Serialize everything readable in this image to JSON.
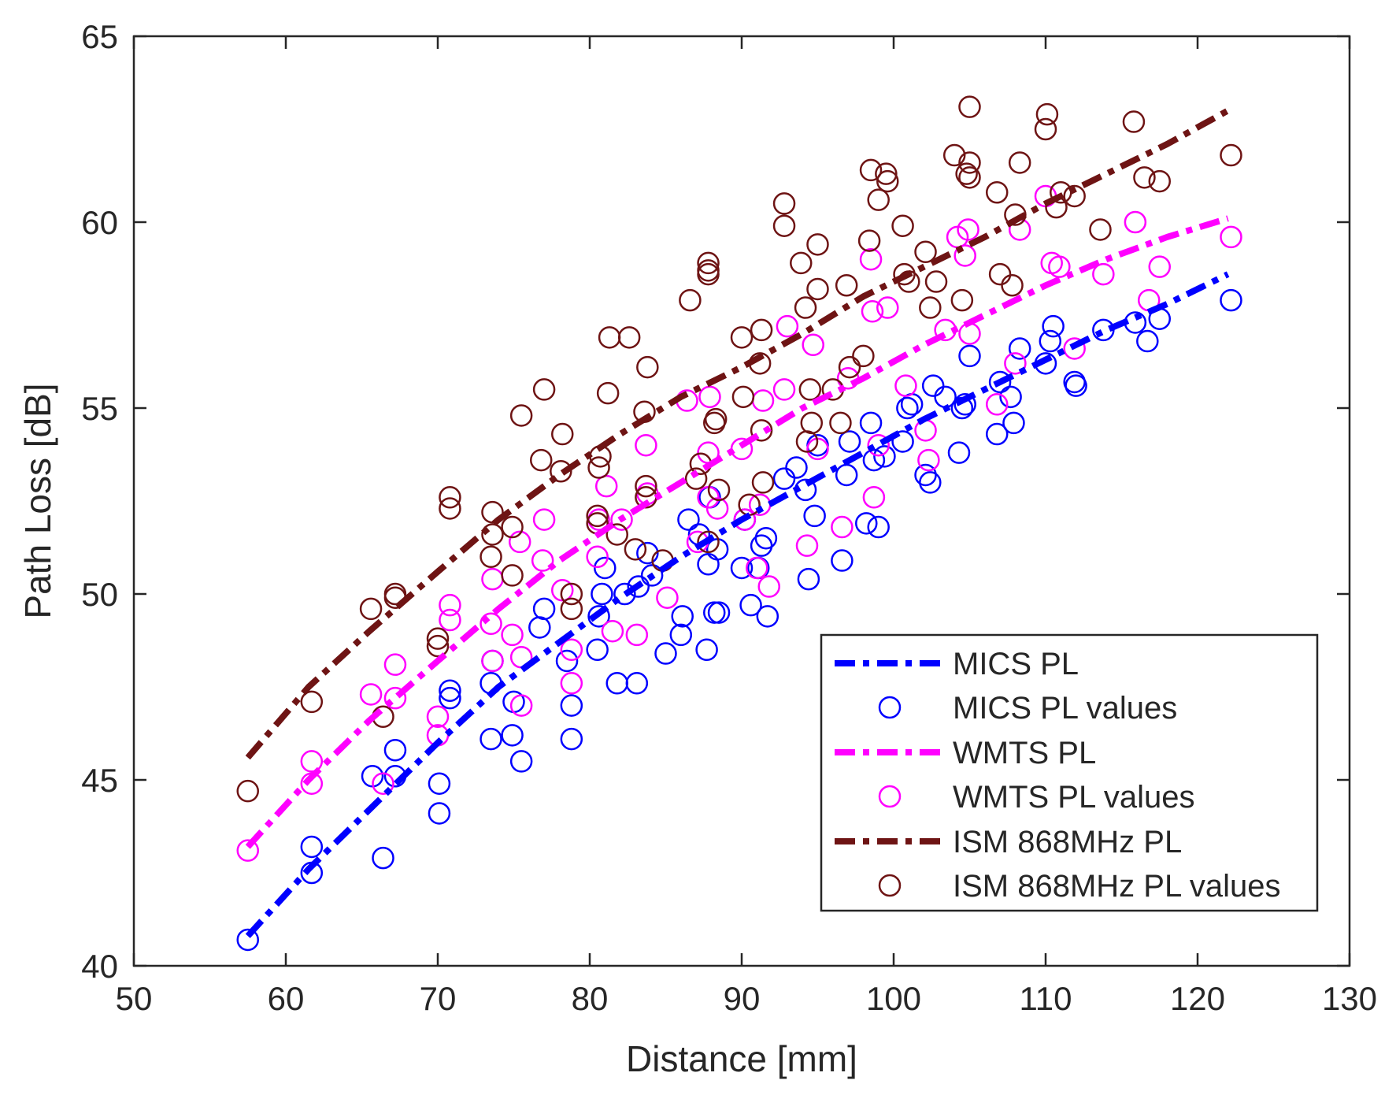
{
  "chart_data": {
    "type": "scatter",
    "title": "",
    "xlabel": "Distance [mm]",
    "ylabel": "Path Loss [dB]",
    "xlim": [
      50,
      130
    ],
    "ylim": [
      40,
      65
    ],
    "xticks": [
      50,
      60,
      70,
      80,
      90,
      100,
      110,
      120,
      130
    ],
    "yticks": [
      40,
      45,
      50,
      55,
      60,
      65
    ],
    "grid": false,
    "legend_position": "bottom-right",
    "fit_x": [
      57.5,
      61.5,
      65.5,
      70,
      74,
      78,
      82,
      86,
      90,
      94,
      98,
      102,
      106,
      110,
      114,
      118,
      122
    ],
    "series": [
      {
        "name": "MICS PL",
        "kind": "line",
        "color": "#0000ff",
        "values": [
          40.8,
          42.6,
          44.2,
          46.0,
          47.5,
          48.7,
          49.9,
          51.0,
          52.0,
          52.9,
          53.8,
          54.7,
          55.5,
          56.3,
          57.1,
          57.8,
          58.6
        ]
      },
      {
        "name": "MICS PL values",
        "kind": "points",
        "color": "#0000ff",
        "x": [
          57.5,
          61.7,
          61.7,
          65.7,
          66.4,
          67.2,
          67.2,
          70.1,
          70.1,
          70.8,
          70.8,
          73.5,
          73.5,
          73.6,
          74.9,
          75.0,
          75.5,
          76.7,
          77.0,
          78.5,
          78.8,
          78.8,
          80.5,
          80.6,
          80.8,
          81.0,
          81.8,
          82.3,
          83.1,
          83.2,
          83.8,
          84.1,
          85.0,
          86.0,
          86.1,
          86.5,
          87.2,
          87.7,
          87.8,
          87.9,
          88.2,
          88.4,
          88.5,
          90.0,
          90.2,
          90.6,
          91.1,
          91.3,
          91.6,
          91.7,
          92.8,
          93.6,
          94.2,
          94.4,
          94.8,
          95.0,
          96.6,
          96.9,
          97.1,
          98.2,
          98.5,
          98.7,
          99.0,
          99.4,
          100.6,
          100.9,
          101.2,
          102.1,
          102.4,
          102.6,
          103.4,
          104.3,
          104.5,
          104.7,
          105.0,
          106.8,
          107.0,
          107.7,
          107.9,
          108.3,
          110.0,
          110.3,
          110.5,
          111.9,
          112.0,
          113.8,
          115.9,
          116.7,
          117.5,
          122.2
        ],
        "y": [
          40.7,
          42.5,
          43.2,
          45.1,
          42.9,
          45.1,
          45.8,
          44.1,
          44.9,
          47.2,
          47.4,
          46.1,
          47.6,
          48.2,
          46.2,
          47.1,
          45.5,
          49.1,
          49.6,
          48.2,
          46.1,
          47.0,
          48.5,
          49.4,
          50.0,
          50.7,
          47.6,
          50.0,
          47.6,
          50.2,
          51.1,
          50.5,
          48.4,
          48.9,
          49.4,
          52.0,
          51.6,
          48.5,
          50.8,
          52.6,
          49.5,
          51.2,
          49.5,
          50.7,
          52.0,
          49.7,
          50.7,
          51.3,
          51.5,
          49.4,
          53.1,
          53.4,
          52.8,
          50.4,
          52.1,
          54.0,
          50.9,
          53.2,
          54.1,
          51.9,
          54.6,
          53.6,
          51.8,
          53.7,
          54.1,
          55.0,
          55.1,
          53.2,
          53.0,
          55.6,
          55.3,
          53.8,
          55.0,
          55.1,
          56.4,
          54.3,
          55.7,
          55.3,
          54.6,
          56.6,
          56.2,
          56.8,
          57.2,
          55.7,
          55.6,
          57.1,
          57.3,
          56.8,
          57.4,
          57.9
        ]
      },
      {
        "name": "WMTS PL",
        "kind": "line",
        "color": "#ff00ff",
        "values": [
          43.2,
          45.0,
          46.6,
          48.2,
          49.6,
          50.9,
          52.0,
          53.0,
          54.0,
          55.0,
          55.8,
          56.7,
          57.5,
          58.3,
          59.0,
          59.6,
          60.1
        ]
      },
      {
        "name": "WMTS PL values",
        "kind": "points",
        "color": "#ff00ff",
        "x": [
          57.5,
          61.7,
          61.7,
          65.6,
          66.4,
          67.2,
          67.2,
          70.0,
          70.0,
          70.8,
          70.8,
          73.5,
          73.6,
          73.6,
          74.9,
          75.4,
          75.5,
          75.5,
          76.9,
          77.0,
          78.2,
          78.8,
          78.8,
          80.5,
          80.6,
          81.1,
          81.5,
          82.1,
          83.1,
          83.7,
          83.8,
          85.1,
          86.4,
          87.1,
          87.8,
          87.8,
          87.9,
          88.4,
          90.0,
          90.2,
          91.0,
          91.2,
          91.4,
          91.8,
          92.8,
          93.0,
          94.3,
          94.7,
          95.0,
          96.6,
          97.0,
          98.5,
          98.6,
          98.7,
          99.0,
          99.6,
          100.8,
          102.1,
          102.3,
          103.4,
          104.2,
          104.7,
          104.9,
          105.0,
          106.8,
          108.0,
          108.3,
          110.0,
          110.4,
          110.9,
          111.9,
          113.8,
          115.9,
          116.8,
          117.5,
          122.2
        ],
        "y": [
          43.1,
          44.9,
          45.5,
          47.3,
          44.9,
          47.2,
          48.1,
          46.2,
          46.7,
          49.3,
          49.7,
          49.2,
          48.2,
          50.4,
          48.9,
          51.4,
          47.0,
          48.3,
          50.9,
          52.0,
          50.1,
          47.6,
          48.5,
          51.0,
          52.0,
          52.9,
          49.0,
          52.0,
          48.9,
          54.0,
          52.7,
          49.9,
          55.2,
          51.4,
          53.8,
          52.6,
          55.3,
          52.3,
          53.9,
          52.0,
          50.7,
          52.4,
          55.2,
          50.2,
          55.5,
          57.2,
          51.3,
          56.7,
          53.9,
          51.8,
          55.8,
          59.0,
          57.6,
          52.6,
          54.0,
          57.7,
          55.6,
          54.4,
          53.6,
          57.1,
          59.6,
          59.1,
          59.8,
          57.0,
          55.1,
          56.2,
          59.8,
          60.7,
          58.9,
          58.8,
          56.6,
          58.6,
          60.0,
          57.9,
          58.8,
          59.6
        ]
      },
      {
        "name": "ISM 868MHz PL",
        "kind": "line",
        "color": "#6e1414",
        "values": [
          45.6,
          47.5,
          49.0,
          50.6,
          52.0,
          53.2,
          54.3,
          55.3,
          56.1,
          57.0,
          58.0,
          58.8,
          59.6,
          60.5,
          61.3,
          62.1,
          63.0
        ]
      },
      {
        "name": "ISM 868MHz PL values",
        "kind": "points",
        "color": "#6e1414",
        "x": [
          57.5,
          61.7,
          65.6,
          66.4,
          67.2,
          67.2,
          70.0,
          70.0,
          70.8,
          70.8,
          73.5,
          73.6,
          73.6,
          74.9,
          74.9,
          75.5,
          76.8,
          77.0,
          78.1,
          78.2,
          78.8,
          78.8,
          80.5,
          80.5,
          80.6,
          80.7,
          81.2,
          81.3,
          81.8,
          82.6,
          83.0,
          83.6,
          83.7,
          83.7,
          83.8,
          84.8,
          86.6,
          87.0,
          87.3,
          87.8,
          87.8,
          87.8,
          87.8,
          88.2,
          88.3,
          88.5,
          90.0,
          90.1,
          90.5,
          91.2,
          91.3,
          91.3,
          91.4,
          92.8,
          92.8,
          93.9,
          94.2,
          94.3,
          94.5,
          94.6,
          95.0,
          95.0,
          96.0,
          96.5,
          96.9,
          97.1,
          98.0,
          98.4,
          98.5,
          99.0,
          99.5,
          99.6,
          100.6,
          100.7,
          101.0,
          102.1,
          102.4,
          102.8,
          104.0,
          104.5,
          104.8,
          105.0,
          105.0,
          105.0,
          106.8,
          107.0,
          107.8,
          108.0,
          108.3,
          110.0,
          110.1,
          110.7,
          111.0,
          111.9,
          113.6,
          115.8,
          116.5,
          117.5,
          122.2
        ],
        "y": [
          44.7,
          47.1,
          49.6,
          46.7,
          49.9,
          50.0,
          48.6,
          48.8,
          52.3,
          52.6,
          51.0,
          51.6,
          52.2,
          51.8,
          50.5,
          54.8,
          53.6,
          55.5,
          53.3,
          54.3,
          49.6,
          50.0,
          51.9,
          52.1,
          53.4,
          53.7,
          55.4,
          56.9,
          51.6,
          56.9,
          51.2,
          54.9,
          52.6,
          52.9,
          56.1,
          50.9,
          57.9,
          53.1,
          53.5,
          58.6,
          58.7,
          58.9,
          51.4,
          54.6,
          54.7,
          52.8,
          56.9,
          55.3,
          52.4,
          56.2,
          57.1,
          54.4,
          53.0,
          59.9,
          60.5,
          58.9,
          57.7,
          54.1,
          55.5,
          54.6,
          59.4,
          58.2,
          55.5,
          54.6,
          58.3,
          56.1,
          56.4,
          59.5,
          61.4,
          60.6,
          61.3,
          61.1,
          59.9,
          58.6,
          58.4,
          59.2,
          57.7,
          58.4,
          61.8,
          57.9,
          61.3,
          61.2,
          61.6,
          63.1,
          60.8,
          58.6,
          58.3,
          60.2,
          61.6,
          62.5,
          62.9,
          60.4,
          60.8,
          60.7,
          59.8,
          62.7,
          61.2,
          61.1,
          61.8
        ]
      }
    ]
  }
}
